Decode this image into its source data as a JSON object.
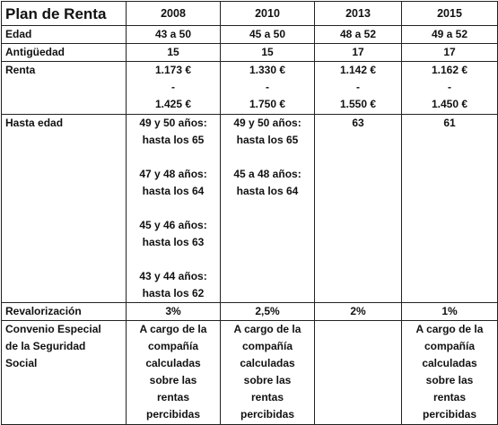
{
  "table": {
    "header": [
      "Plan de Renta",
      "2008",
      "2010",
      "2013",
      "2015"
    ],
    "rows": [
      {
        "label": [
          "Edad"
        ],
        "cells": [
          [
            [
              "43 a 50"
            ]
          ],
          [
            [
              "45 a 50"
            ]
          ],
          [
            [
              "48 a 52"
            ]
          ],
          [
            [
              "49 a 52"
            ]
          ]
        ]
      },
      {
        "label": [
          "Antigüedad"
        ],
        "cells": [
          [
            [
              "15"
            ]
          ],
          [
            [
              "15"
            ]
          ],
          [
            [
              "17"
            ]
          ],
          [
            [
              "17"
            ]
          ]
        ]
      },
      {
        "label": [
          "Renta"
        ],
        "cells": [
          [
            [
              "1.173 €",
              "-",
              "1.425 €"
            ]
          ],
          [
            [
              "1.330 €",
              "-",
              "1.750 €"
            ]
          ],
          [
            [
              "1.142 €",
              "-",
              "1.550 €"
            ]
          ],
          [
            [
              "1.162 €",
              "-",
              "1.450 €"
            ]
          ]
        ]
      },
      {
        "label": [
          "Hasta edad"
        ],
        "cells": [
          [
            [
              "49 y 50 años:",
              "hasta los 65"
            ],
            [
              "47 y 48 años:",
              "hasta los 64"
            ],
            [
              "45 y 46 años:",
              "hasta los 63"
            ],
            [
              "43 y 44 años:",
              "hasta los 62"
            ]
          ],
          [
            [
              "49 y 50 años:",
              "hasta los 65"
            ],
            [
              "45 a 48 años:",
              "hasta los 64"
            ]
          ],
          [
            [
              "63"
            ]
          ],
          [
            [
              "61"
            ]
          ]
        ]
      },
      {
        "label": [
          "Revalorización"
        ],
        "cells": [
          [
            [
              "3%"
            ]
          ],
          [
            [
              "2,5%"
            ]
          ],
          [
            [
              "2%"
            ]
          ],
          [
            [
              "1%"
            ]
          ]
        ]
      },
      {
        "label": [
          "Convenio Especial",
          "de la Seguridad",
          "Social"
        ],
        "cells": [
          [
            [
              "A cargo de la",
              "compañía",
              "calculadas",
              "sobre las",
              "rentas",
              "percibidas"
            ]
          ],
          [
            [
              "A cargo de la",
              "compañía",
              "calculadas",
              "sobre las",
              "rentas",
              "percibidas"
            ]
          ],
          [],
          [
            [
              "A cargo de la",
              "compañía",
              "calculadas",
              "sobre las",
              "rentas",
              "percibidas"
            ]
          ]
        ]
      }
    ]
  }
}
